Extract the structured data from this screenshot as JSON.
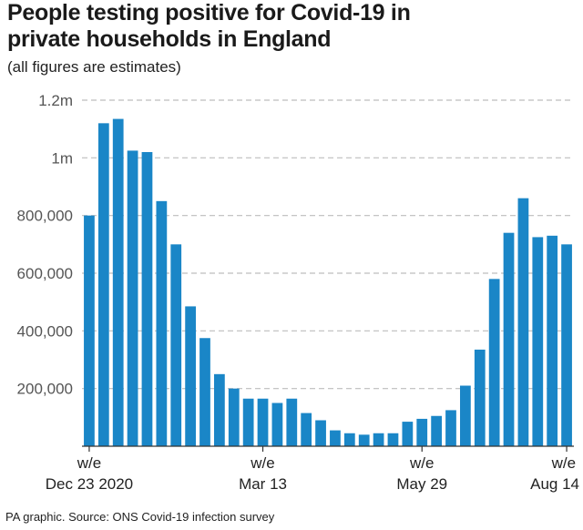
{
  "header": {
    "title_line1": "People testing positive for Covid-19 in",
    "title_line2": "private households in England",
    "subtitle": "(all figures are estimates)"
  },
  "footer": {
    "source": "PA graphic. Source: ONS Covid-19 infection survey"
  },
  "colors": {
    "bar": "#1a86c7",
    "grid": "#bdbdbd",
    "axis": "#333333"
  },
  "chart_data": {
    "type": "bar",
    "title": "People testing positive for Covid-19 in private households in England",
    "subtitle": "(all figures are estimates)",
    "xlabel": "",
    "ylabel": "",
    "ylim": [
      0,
      1200000
    ],
    "grid": true,
    "yticks": [
      {
        "value": 200000,
        "label": "200,000"
      },
      {
        "value": 400000,
        "label": "400,000"
      },
      {
        "value": 600000,
        "label": "600,000"
      },
      {
        "value": 800000,
        "label": "800,000"
      },
      {
        "value": 1000000,
        "label": "1m"
      },
      {
        "value": 1200000,
        "label": "1.2m"
      }
    ],
    "xticks": [
      {
        "index": 0,
        "line1": "w/e",
        "line2": "Dec 23 2020"
      },
      {
        "index": 12,
        "line1": "w/e",
        "line2": "Mar 13"
      },
      {
        "index": 23,
        "line1": "w/e",
        "line2": "May 29"
      },
      {
        "index": 34,
        "line1": "w/e",
        "line2": "Aug 14"
      }
    ],
    "values": [
      800000,
      1120000,
      1135000,
      1025000,
      1020000,
      850000,
      700000,
      485000,
      375000,
      250000,
      200000,
      165000,
      165000,
      150000,
      165000,
      115000,
      90000,
      55000,
      45000,
      40000,
      45000,
      45000,
      85000,
      95000,
      105000,
      125000,
      210000,
      335000,
      580000,
      740000,
      860000,
      725000,
      730000,
      700000
    ]
  }
}
